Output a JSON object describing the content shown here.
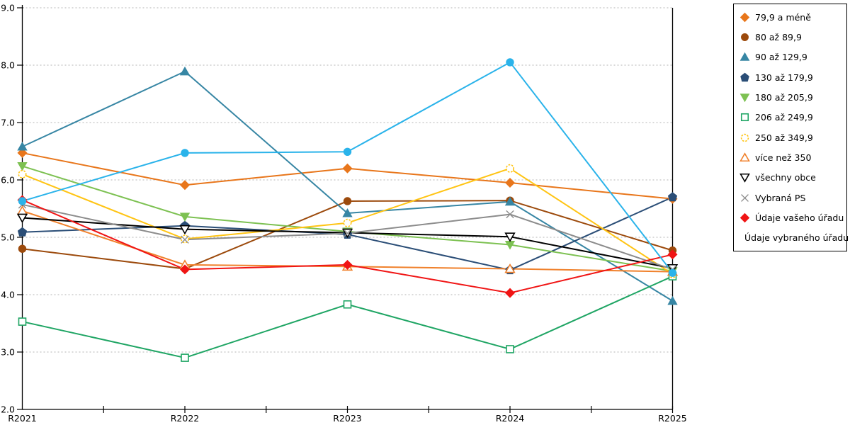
{
  "chart_data": {
    "type": "line",
    "categories": [
      "R2021",
      "R2022",
      "R2023",
      "R2024",
      "R2025"
    ],
    "ylim": [
      2.0,
      9.0
    ],
    "ytick_step": 1.0,
    "ytick_labels": [
      "2.0",
      "3.0",
      "4.0",
      "5.0",
      "6.0",
      "7.0",
      "8.0",
      "9.0"
    ],
    "grid": "horizontal-dotted",
    "legend_position": "right",
    "axis_color": "#000000",
    "grid_color": "#b3b3b3",
    "series": [
      {
        "name": "79,9 a méně",
        "marker": "diamond",
        "filled": true,
        "color": "#E8761B",
        "values": [
          6.47,
          5.91,
          6.2,
          5.95,
          5.67
        ]
      },
      {
        "name": "80 až 89,9",
        "marker": "circle",
        "filled": true,
        "color": "#9C4A0C",
        "values": [
          4.8,
          4.45,
          5.63,
          5.64,
          4.77
        ]
      },
      {
        "name": "90 až 129,9",
        "marker": "triangle-up",
        "filled": true,
        "color": "#3786A4",
        "values": [
          6.58,
          7.89,
          5.42,
          5.62,
          3.89
        ]
      },
      {
        "name": "130 až 179,9",
        "marker": "pentagon",
        "filled": true,
        "color": "#2B4E77",
        "values": [
          5.09,
          5.2,
          5.05,
          4.43,
          5.7
        ]
      },
      {
        "name": "180 až 205,9",
        "marker": "triangle-down",
        "filled": true,
        "color": "#7DC152",
        "values": [
          6.24,
          5.36,
          5.1,
          4.87,
          4.41
        ]
      },
      {
        "name": "206 až 249,9",
        "marker": "square",
        "filled": false,
        "color": "#1FA564",
        "values": [
          3.53,
          2.9,
          3.83,
          3.05,
          4.32
        ]
      },
      {
        "name": "250 až 349,9",
        "marker": "circle-dashed",
        "filled": false,
        "color": "#FFC413",
        "values": [
          6.1,
          4.97,
          5.25,
          6.2,
          4.36
        ]
      },
      {
        "name": "více než 350",
        "marker": "triangle-up",
        "filled": false,
        "color": "#F0812C",
        "values": [
          5.46,
          4.52,
          4.49,
          4.45,
          4.4
        ]
      },
      {
        "name": "všechny obce",
        "marker": "triangle-down",
        "filled": false,
        "color": "#000000",
        "values": [
          5.34,
          5.14,
          5.08,
          5.01,
          4.46
        ]
      },
      {
        "name": "Vybraná PS",
        "marker": "x",
        "filled": false,
        "color": "#8C8C8C",
        "values": [
          5.57,
          4.96,
          5.07,
          5.4,
          4.44
        ]
      },
      {
        "name": "Údaje vašeho úřadu",
        "marker": "diamond",
        "filled": true,
        "color": "#F01414",
        "values": [
          5.65,
          4.44,
          4.52,
          4.03,
          4.7
        ]
      },
      {
        "name": "Údaje vybraného úřadu",
        "marker": "circle",
        "filled": true,
        "color": "#2AB3EA",
        "values": [
          5.63,
          6.47,
          6.49,
          8.05,
          4.38
        ]
      }
    ]
  }
}
